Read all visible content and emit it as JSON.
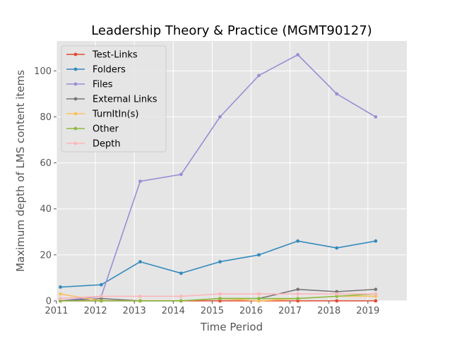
{
  "chart_data": {
    "type": "line",
    "title": "Leadership Theory & Practice (MGMT90127)",
    "xlabel": "Time Period",
    "ylabel": "Maximum depth of LMS content items",
    "xlim": [
      2011,
      2020
    ],
    "ylim": [
      0,
      113
    ],
    "x_ticks": [
      "2011",
      "2012",
      "2013",
      "2014",
      "2015",
      "2016",
      "2017",
      "2018",
      "2019"
    ],
    "y_ticks": [
      "0",
      "20",
      "40",
      "60",
      "80",
      "100"
    ],
    "grid": true,
    "legend_position": "top-left",
    "x": [
      2011.1,
      2012.15,
      2013.15,
      2014.2,
      2015.2,
      2016.2,
      2017.2,
      2018.2,
      2019.2
    ],
    "series": [
      {
        "name": "Test-Links",
        "color": "#e24a33",
        "values": [
          0,
          0,
          0,
          0,
          0,
          0,
          0,
          0,
          0
        ]
      },
      {
        "name": "Folders",
        "color": "#348abd",
        "values": [
          6,
          7,
          17,
          12,
          17,
          20,
          26,
          23,
          26
        ]
      },
      {
        "name": "Files",
        "color": "#988ed5",
        "values": [
          0,
          2,
          52,
          55,
          80,
          98,
          107,
          90,
          80
        ]
      },
      {
        "name": "External Links",
        "color": "#777777",
        "values": [
          0,
          1,
          0,
          0,
          1,
          1,
          5,
          4,
          5
        ]
      },
      {
        "name": "TurnItIn(s)",
        "color": "#fbc15e",
        "values": [
          3,
          0,
          0,
          0,
          1,
          0,
          1,
          2,
          2
        ]
      },
      {
        "name": "Other",
        "color": "#8eba42",
        "values": [
          0,
          0,
          0,
          0,
          1,
          1,
          1,
          2,
          3
        ]
      },
      {
        "name": "Depth",
        "color": "#ffb5b8",
        "values": [
          1,
          2,
          2,
          2,
          3,
          3,
          3,
          3,
          3
        ]
      }
    ]
  }
}
